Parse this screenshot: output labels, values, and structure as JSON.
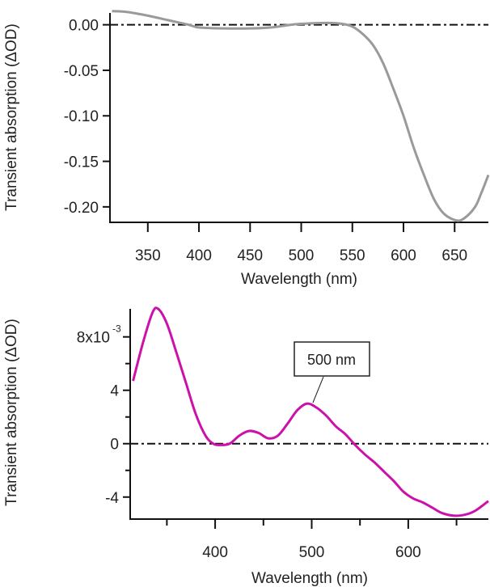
{
  "chart_data": [
    {
      "type": "line",
      "xlabel": "Wavelength (nm)",
      "ylabel": "Transient absorption (ΔOD)",
      "xlim": [
        313,
        683
      ],
      "ylim": [
        -0.217,
        0.013
      ],
      "xticks": [
        350,
        400,
        450,
        500,
        550,
        600,
        650
      ],
      "xtick_labels": [
        "350",
        "400",
        "450",
        "500",
        "550",
        "600",
        "650"
      ],
      "yticks": [
        0,
        -0.05,
        -0.1,
        -0.15,
        -0.2
      ],
      "ytick_labels": [
        "0.00",
        "-0.05",
        "-0.10",
        "-0.15",
        "-0.20"
      ],
      "zero_line": "dash-dot",
      "grid": false,
      "color": "#9a9a9a",
      "series": [
        {
          "x": [
            315,
            330,
            350,
            370,
            390,
            400,
            425,
            450,
            470,
            490,
            500,
            525,
            540,
            550,
            560,
            570,
            580,
            590,
            600,
            610,
            620,
            630,
            640,
            652,
            660,
            670,
            676,
            683
          ],
          "y": [
            0.015,
            0.014,
            0.01,
            0.005,
            0.0,
            -0.003,
            -0.004,
            -0.004,
            -0.003,
            0.0,
            0.001,
            0.002,
            0.001,
            -0.002,
            -0.01,
            -0.022,
            -0.042,
            -0.07,
            -0.1,
            -0.135,
            -0.165,
            -0.192,
            -0.208,
            -0.215,
            -0.212,
            -0.2,
            -0.185,
            -0.165
          ]
        }
      ]
    },
    {
      "type": "line",
      "xlabel": "Wavelength (nm)",
      "ylabel": "Transient absorption (ΔOD)",
      "xlim": [
        312,
        683
      ],
      "ylim": [
        -5.65,
        10.1
      ],
      "y_scale_label": "x10^-3",
      "xticks": [
        400,
        500,
        600
      ],
      "xtick_labels": [
        "400",
        "500",
        "600"
      ],
      "xminor": [
        350,
        450,
        550,
        650
      ],
      "yticks": [
        8,
        4,
        0,
        -4
      ],
      "ytick_labels": [
        "8x10",
        "4",
        "0",
        "-4"
      ],
      "ytick_exponent": "-3",
      "yminor": [
        6,
        2,
        -2
      ],
      "zero_line": "dash-dot",
      "grid": false,
      "color": "#cc11aa",
      "annotation": {
        "text": "500 nm",
        "x": 497,
        "y": 3.0
      },
      "series": [
        {
          "x": [
            315,
            325,
            335,
            341,
            350,
            360,
            370,
            380,
            390,
            398,
            405,
            415,
            425,
            435,
            445,
            455,
            465,
            475,
            485,
            495,
            505,
            515,
            525,
            535,
            545,
            555,
            565,
            575,
            585,
            595,
            605,
            615,
            625,
            635,
            648,
            660,
            670,
            683
          ],
          "y": [
            4.7,
            7.5,
            9.8,
            10.1,
            9.0,
            6.8,
            4.5,
            2.2,
            0.6,
            0.0,
            -0.1,
            0.0,
            0.6,
            0.95,
            0.8,
            0.4,
            0.6,
            1.5,
            2.5,
            3.0,
            2.7,
            2.1,
            1.3,
            0.7,
            -0.1,
            -0.8,
            -1.4,
            -2.1,
            -2.8,
            -3.6,
            -4.1,
            -4.4,
            -4.8,
            -5.2,
            -5.4,
            -5.3,
            -5.0,
            -4.3
          ]
        }
      ]
    }
  ]
}
